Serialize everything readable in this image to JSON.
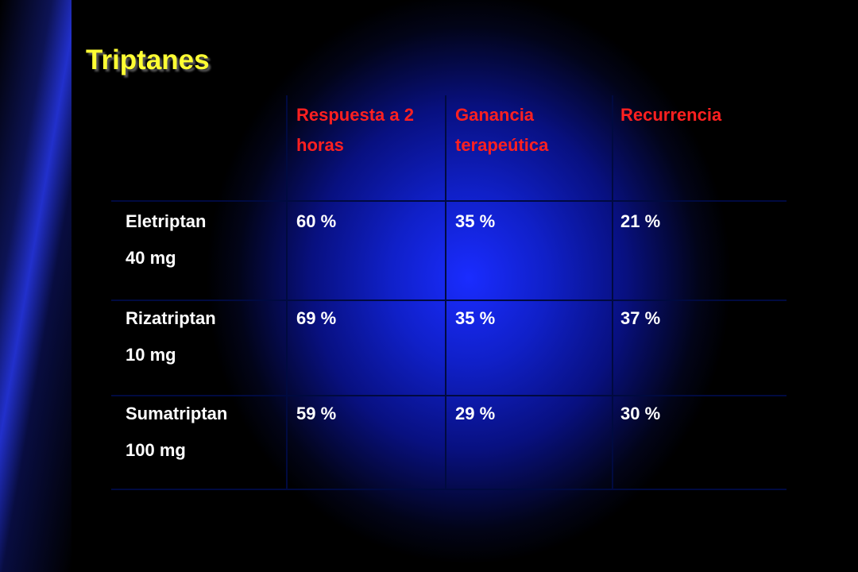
{
  "title": "Triptanes",
  "table": {
    "header": [
      "Respuesta a 2 horas",
      "Ganancia terapeútica",
      "Recurrencia"
    ],
    "rows": [
      {
        "drug": "Eletriptan",
        "dose": "40 mg",
        "values": [
          "60 %",
          "35 %",
          "21 %"
        ]
      },
      {
        "drug": "Rizatriptan",
        "dose": "10 mg",
        "values": [
          "69 %",
          "35 %",
          "37 %"
        ]
      },
      {
        "drug": "Sumatriptan",
        "dose": "100 mg",
        "values": [
          "59 %",
          "29 %",
          "30 %"
        ]
      }
    ]
  }
}
